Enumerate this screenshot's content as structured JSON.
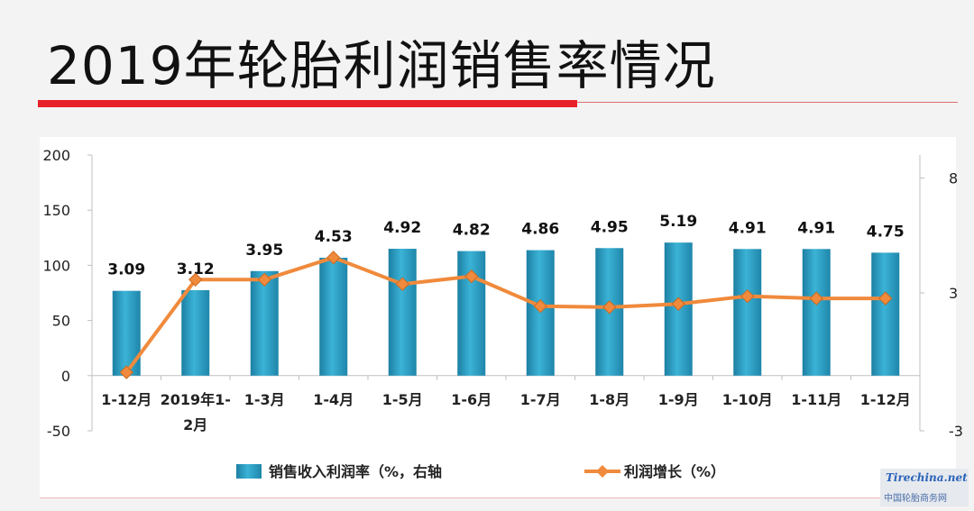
{
  "page": {
    "title": "2019年轮胎利润销售率情况"
  },
  "watermark": {
    "logo": "Tirechina.net",
    "text": "中国轮胎商务网"
  },
  "chart_data": {
    "type": "bar+line",
    "title": "",
    "categories": [
      "1-12月",
      "2019年1-2月",
      "1-3月",
      "1-4月",
      "1-5月",
      "1-6月",
      "1-7月",
      "1-8月",
      "1-9月",
      "1-10月",
      "1-11月",
      "1-12月"
    ],
    "category_lines": [
      [
        "1-12月"
      ],
      [
        "2019年1-",
        "2月"
      ],
      [
        "1-3月"
      ],
      [
        "1-4月"
      ],
      [
        "1-5月"
      ],
      [
        "1-6月"
      ],
      [
        "1-7月"
      ],
      [
        "1-8月"
      ],
      [
        "1-9月"
      ],
      [
        "1-10月"
      ],
      [
        "1-11月"
      ],
      [
        "1-12月"
      ]
    ],
    "left_axis": {
      "ylim": [
        -50,
        200
      ],
      "ticks": [
        "-50",
        "0",
        "50",
        "100",
        "150",
        "200"
      ],
      "tick_values": [
        -50,
        0,
        50,
        100,
        150,
        200
      ]
    },
    "right_axis": {
      "ylim": [
        -3,
        9
      ],
      "ticks": [
        "-3",
        "3",
        "8"
      ],
      "tick_values": [
        -3,
        3,
        8
      ]
    },
    "series": [
      {
        "name": "销售收入利润率（%，右轴",
        "type": "bar",
        "axis": "right",
        "color": "#2a9fc4",
        "values": [
          3.09,
          3.12,
          3.95,
          4.53,
          4.92,
          4.82,
          4.86,
          4.95,
          5.19,
          4.91,
          4.91,
          4.75
        ],
        "labels": [
          "3.09",
          "3.12",
          "3.95",
          "4.53",
          "4.92",
          "4.82",
          "4.86",
          "4.95",
          "5.19",
          "4.91",
          "4.91",
          "4.75"
        ]
      },
      {
        "name": "利润增长（%）",
        "type": "line",
        "axis": "left",
        "color": "#f08a3c",
        "values": [
          3,
          87,
          87,
          107,
          83,
          90,
          63,
          62,
          65,
          72,
          70,
          70
        ]
      }
    ],
    "grid": false,
    "legend": "bottom"
  }
}
